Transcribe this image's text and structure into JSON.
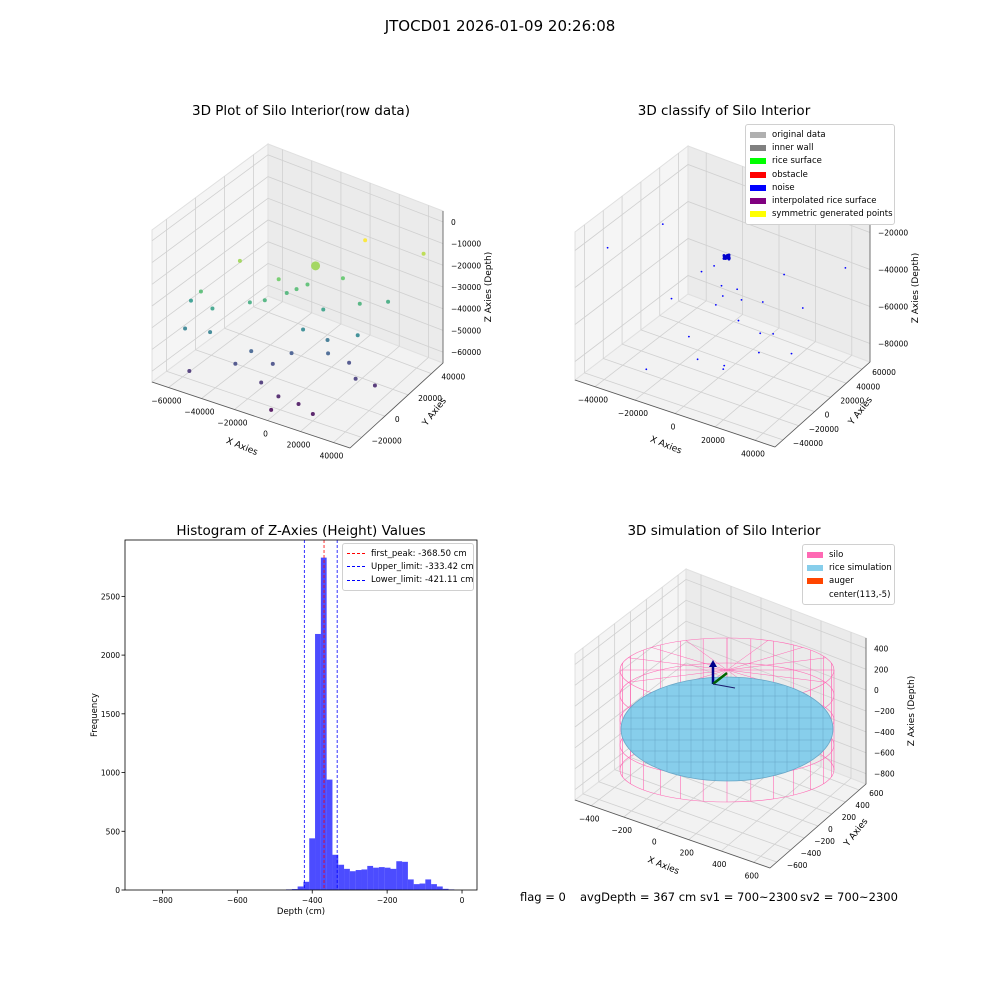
{
  "suptitle": "JTOCD01 2026-01-09 20:26:08",
  "status": {
    "flag": "flag = 0",
    "avg_depth": "avgDepth = 367 cm",
    "sv1": "sv1 = 700~2300",
    "sv2": "sv2 = 700~2300"
  },
  "chart_data": [
    {
      "type": "scatter",
      "title": "3D Plot of Silo Interior(row data)",
      "xlabel": "X Axies",
      "ylabel": "Y Axies",
      "zlabel": "Z Axies (Depth)",
      "x_ticks": [
        "−60000",
        "−40000",
        "−20000",
        "0",
        "20000",
        "40000"
      ],
      "y_ticks": [
        "−20000",
        "0",
        "20000",
        "40000"
      ],
      "z_ticks": [
        "0",
        "−10000",
        "−20000",
        "−30000",
        "−40000",
        "−50000",
        "−60000"
      ],
      "xlim": [
        -65000,
        50000
      ],
      "ylim": [
        -30000,
        50000
      ],
      "zlim": [
        -70000,
        5000
      ],
      "colormap": "viridis by depth",
      "points": [
        {
          "x": -2000,
          "y": 8000,
          "z": -15000
        },
        {
          "x": -35000,
          "y": -5000,
          "z": -15000
        },
        {
          "x": 15000,
          "y": 22000,
          "z": -5000
        },
        {
          "x": 38000,
          "y": 35000,
          "z": -12000
        },
        {
          "x": -45000,
          "y": -20000,
          "z": -25000
        },
        {
          "x": -15000,
          "y": -2000,
          "z": -20000
        },
        {
          "x": 8000,
          "y": 15000,
          "z": -22000
        },
        {
          "x": 22000,
          "y": 10000,
          "z": -28000
        },
        {
          "x": -5000,
          "y": 6000,
          "z": -24000
        },
        {
          "x": -18000,
          "y": -8000,
          "z": -28000
        },
        {
          "x": 30000,
          "y": 20000,
          "z": -30000
        },
        {
          "x": -55000,
          "y": -15000,
          "z": -35000
        },
        {
          "x": -40000,
          "y": -18000,
          "z": -33000
        },
        {
          "x": -25000,
          "y": -10000,
          "z": -30000
        },
        {
          "x": -12000,
          "y": 0,
          "z": -27000
        },
        {
          "x": -8000,
          "y": 2000,
          "z": -25000
        },
        {
          "x": 5000,
          "y": 5000,
          "z": -33000
        },
        {
          "x": 25000,
          "y": 5000,
          "z": -40000
        },
        {
          "x": -50000,
          "y": -25000,
          "z": -42000
        },
        {
          "x": -38000,
          "y": -22000,
          "z": -42000
        },
        {
          "x": 0,
          "y": -3000,
          "z": -40000
        },
        {
          "x": 10000,
          "y": 2000,
          "z": -45000
        },
        {
          "x": -20000,
          "y": -15000,
          "z": -50000
        },
        {
          "x": -5000,
          "y": -5000,
          "z": -52000
        },
        {
          "x": 12000,
          "y": 0,
          "z": -50000
        },
        {
          "x": 20000,
          "y": 5000,
          "z": -55000
        },
        {
          "x": -25000,
          "y": -20000,
          "z": -55000
        },
        {
          "x": -10000,
          "y": -12000,
          "z": -55000
        },
        {
          "x": 28000,
          "y": 0,
          "z": -58000
        },
        {
          "x": -45000,
          "y": -28000,
          "z": -60000
        },
        {
          "x": -10000,
          "y": -20000,
          "z": -60000
        },
        {
          "x": 35000,
          "y": 5000,
          "z": -62000
        },
        {
          "x": 0,
          "y": -20000,
          "z": -64000
        },
        {
          "x": 10000,
          "y": -18000,
          "z": -66000
        },
        {
          "x": 20000,
          "y": -20000,
          "z": -67000
        },
        {
          "x": 0,
          "y": -25000,
          "z": -68000
        }
      ]
    },
    {
      "type": "scatter",
      "title": "3D classify of Silo Interior",
      "xlabel": "X Axies",
      "ylabel": "Y Axies",
      "zlabel": "Z Axies (Depth)",
      "x_ticks": [
        "−40000",
        "−20000",
        "0",
        "20000",
        "40000"
      ],
      "y_ticks": [
        "−40000",
        "−20000",
        "0",
        "20000",
        "40000",
        "60000"
      ],
      "z_ticks": [
        "−20000",
        "−40000",
        "−60000",
        "−80000"
      ],
      "legend": [
        {
          "label": "original data",
          "color": "#b0b0b0"
        },
        {
          "label": "inner wall",
          "color": "#808080"
        },
        {
          "label": "rice surface",
          "color": "#00ff00"
        },
        {
          "label": "obstacle",
          "color": "#ff0000"
        },
        {
          "label": "noise",
          "color": "#0000ff"
        },
        {
          "label": "interpolated rice surface",
          "color": "#800080"
        },
        {
          "label": "symmetric generated points",
          "color": "#ffff00"
        }
      ]
    },
    {
      "type": "bar",
      "title": "Histogram of Z-Axies (Height) Values",
      "xlabel": "Depth (cm)",
      "ylabel": "Frequency",
      "xlim": [
        -900,
        40
      ],
      "ylim": [
        0,
        2980
      ],
      "x_ticks": [
        -800,
        -600,
        -400,
        -200,
        0
      ],
      "x_tick_labels": [
        "−800",
        "−600",
        "−400",
        "−200",
        "0"
      ],
      "y_ticks": [
        0,
        500,
        1000,
        1500,
        2000,
        2500
      ],
      "y_tick_labels": [
        "0",
        "500",
        "1000",
        "1500",
        "2000",
        "2500"
      ],
      "bar_color": "#0000ff",
      "bin_width": 15.5,
      "bins": [
        {
          "start": -470,
          "count": 5
        },
        {
          "start": -454.5,
          "count": 8
        },
        {
          "start": -439,
          "count": 30
        },
        {
          "start": -423.5,
          "count": 70
        },
        {
          "start": -408,
          "count": 440
        },
        {
          "start": -392.5,
          "count": 2180
        },
        {
          "start": -377,
          "count": 2830
        },
        {
          "start": -361.5,
          "count": 940
        },
        {
          "start": -346,
          "count": 300
        },
        {
          "start": -330.5,
          "count": 215
        },
        {
          "start": -315,
          "count": 180
        },
        {
          "start": -299.5,
          "count": 160
        },
        {
          "start": -284,
          "count": 170
        },
        {
          "start": -268.5,
          "count": 175
        },
        {
          "start": -253,
          "count": 205
        },
        {
          "start": -237.5,
          "count": 190
        },
        {
          "start": -222,
          "count": 195
        },
        {
          "start": -206.5,
          "count": 190
        },
        {
          "start": -191,
          "count": 180
        },
        {
          "start": -175.5,
          "count": 245
        },
        {
          "start": -160,
          "count": 240
        },
        {
          "start": -144.5,
          "count": 90
        },
        {
          "start": -129,
          "count": 50
        },
        {
          "start": -113.5,
          "count": 55
        },
        {
          "start": -98,
          "count": 90
        },
        {
          "start": -82.5,
          "count": 50
        },
        {
          "start": -67,
          "count": 30
        },
        {
          "start": -51.5,
          "count": 10
        },
        {
          "start": -36,
          "count": 5
        }
      ],
      "lines": [
        {
          "label": "first_peak: -368.50 cm",
          "x": -368.5,
          "color": "#ff0000"
        },
        {
          "label": "Upper_limit: -333.42 cm",
          "x": -333.42,
          "color": "#0000ff"
        },
        {
          "label": "Lower_limit: -421.11 cm",
          "x": -421.11,
          "color": "#0000ff"
        }
      ]
    },
    {
      "type": "scatter",
      "title": "3D simulation of Silo Interior",
      "xlabel": "X Axies",
      "ylabel": "Y Axies",
      "zlabel": "Z Axies (Depth)",
      "x_ticks": [
        "−400",
        "−200",
        "0",
        "200",
        "400",
        "600"
      ],
      "y_ticks": [
        "−600",
        "−400",
        "−200",
        "0",
        "200",
        "400",
        "600"
      ],
      "z_ticks": [
        "400",
        "200",
        "0",
        "−200",
        "−400",
        "−600",
        "−800"
      ],
      "legend": [
        {
          "label": "silo",
          "color": "#ff69b4"
        },
        {
          "label": "rice simulation",
          "color": "#87ceeb"
        },
        {
          "label": "auger",
          "color": "#ff4500"
        },
        {
          "label": "center(113,-5)",
          "color": ""
        }
      ]
    }
  ]
}
